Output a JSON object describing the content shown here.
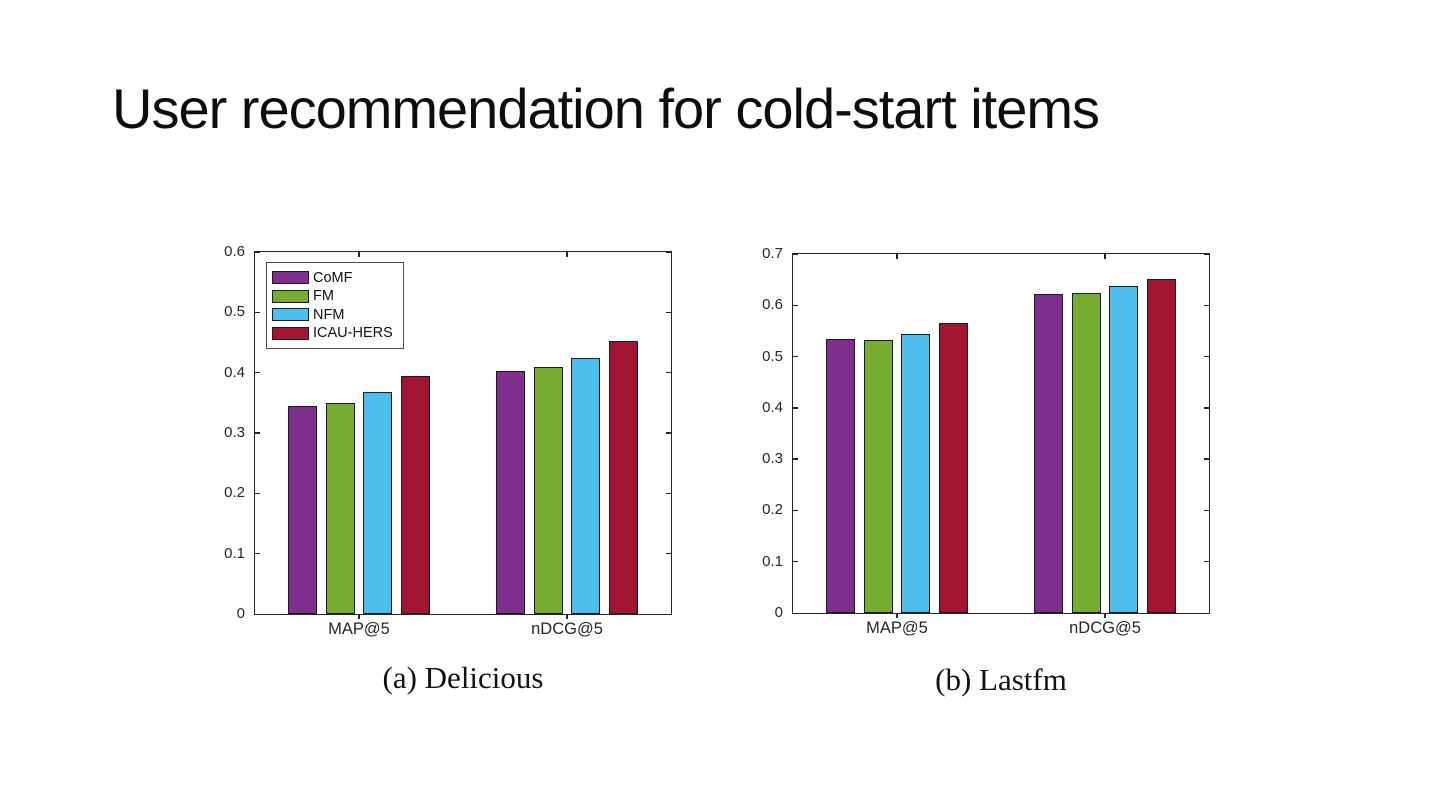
{
  "slide": {
    "title": "User recommendation for cold-start items",
    "background": "#ffffff"
  },
  "chart_data": [
    {
      "type": "bar",
      "title": "(a) Delicious",
      "categories": [
        "MAP@5",
        "nDCG@5"
      ],
      "series": [
        {
          "name": "CoMF",
          "color": "#7E2F8E",
          "values": [
            0.345,
            0.402
          ]
        },
        {
          "name": "FM",
          "color": "#77AC30",
          "values": [
            0.35,
            0.41
          ]
        },
        {
          "name": "NFM",
          "color": "#4DBEEE",
          "values": [
            0.368,
            0.425
          ]
        },
        {
          "name": "ICAU-HERS",
          "color": "#A2142F",
          "values": [
            0.394,
            0.452
          ]
        }
      ],
      "ylim": [
        0,
        0.6
      ],
      "ytick_step": 0.1,
      "grid": false,
      "legend": {
        "show": true,
        "position": "top-left"
      },
      "bar_edge_color": "#1a1a1a"
    },
    {
      "type": "bar",
      "title": "(b) Lastfm",
      "categories": [
        "MAP@5",
        "nDCG@5"
      ],
      "series": [
        {
          "name": "CoMF",
          "color": "#7E2F8E",
          "values": [
            0.535,
            0.622
          ]
        },
        {
          "name": "FM",
          "color": "#77AC30",
          "values": [
            0.532,
            0.624
          ]
        },
        {
          "name": "NFM",
          "color": "#4DBEEE",
          "values": [
            0.545,
            0.637
          ]
        },
        {
          "name": "ICAU-HERS",
          "color": "#A2142F",
          "values": [
            0.565,
            0.652
          ]
        }
      ],
      "ylim": [
        0,
        0.7
      ],
      "ytick_step": 0.1,
      "grid": false,
      "legend": {
        "show": false,
        "position": "top-left"
      },
      "bar_edge_color": "#1a1a1a"
    }
  ]
}
